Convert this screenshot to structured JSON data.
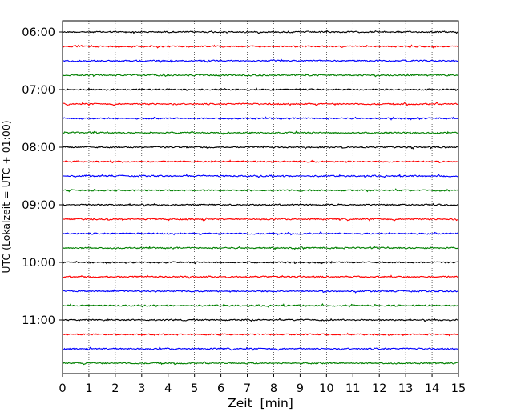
{
  "chart_data": {
    "type": "line",
    "title": "",
    "xlabel": "Zeit  [min]",
    "ylabel": "UTC (Lokalzeit = UTC + 01:00)",
    "xlim": [
      0,
      15
    ],
    "x_ticks": [
      "0",
      "1",
      "2",
      "3",
      "4",
      "5",
      "6",
      "7",
      "8",
      "9",
      "10",
      "11",
      "12",
      "13",
      "14",
      "15"
    ],
    "y_ticks": [
      "06:00",
      "07:00",
      "08:00",
      "09:00",
      "10:00",
      "11:00"
    ],
    "grid": "vertical dotted lines at each minute",
    "legend": "none",
    "trace_interval_min": 15,
    "traces_start": "06:00",
    "trace_count": 24,
    "trace_colors": [
      "#000000",
      "#ff0000",
      "#0000ff",
      "#008000"
    ],
    "description_of_signal": "seismogram traces (helicorder) — low-amplitude noise"
  }
}
